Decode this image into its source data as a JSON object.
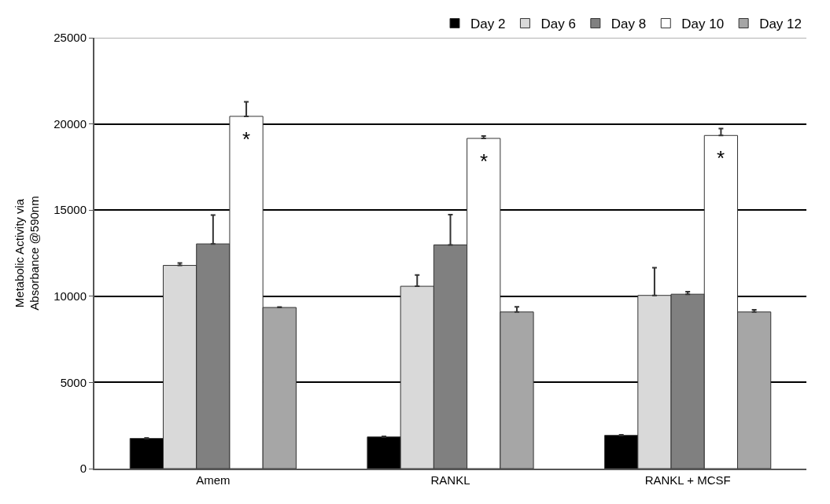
{
  "chart_data": {
    "type": "bar",
    "ylabel": "Metabolic Activity via\nAbsorbance @590nm",
    "categories": [
      "Amem",
      "RANKL",
      "RANKL + MCSF"
    ],
    "series": [
      {
        "name": "Day 2",
        "color": "#000000",
        "values": [
          1750,
          1840,
          1930
        ],
        "errors": [
          30,
          30,
          30
        ]
      },
      {
        "name": "Day 6",
        "color": "#d9d9d9",
        "values": [
          11790,
          10580,
          10050
        ],
        "errors": [
          140,
          650,
          1610
        ]
      },
      {
        "name": "Day 8",
        "color": "#808080",
        "values": [
          13040,
          12980,
          10120
        ],
        "errors": [
          1670,
          1760,
          140
        ]
      },
      {
        "name": "Day 10",
        "color": "#ffffff",
        "values": [
          20440,
          19160,
          19330
        ],
        "errors": [
          840,
          140,
          400
        ]
      },
      {
        "name": "Day 12",
        "color": "#a6a6a6",
        "values": [
          9350,
          9090,
          9090
        ],
        "errors": [
          30,
          300,
          120
        ]
      }
    ],
    "annotations": [
      "*",
      "*",
      "*"
    ],
    "ylim": [
      0,
      25000
    ],
    "yticks": [
      0,
      5000,
      10000,
      15000,
      20000,
      25000
    ],
    "grid": "y",
    "legend": "top"
  }
}
